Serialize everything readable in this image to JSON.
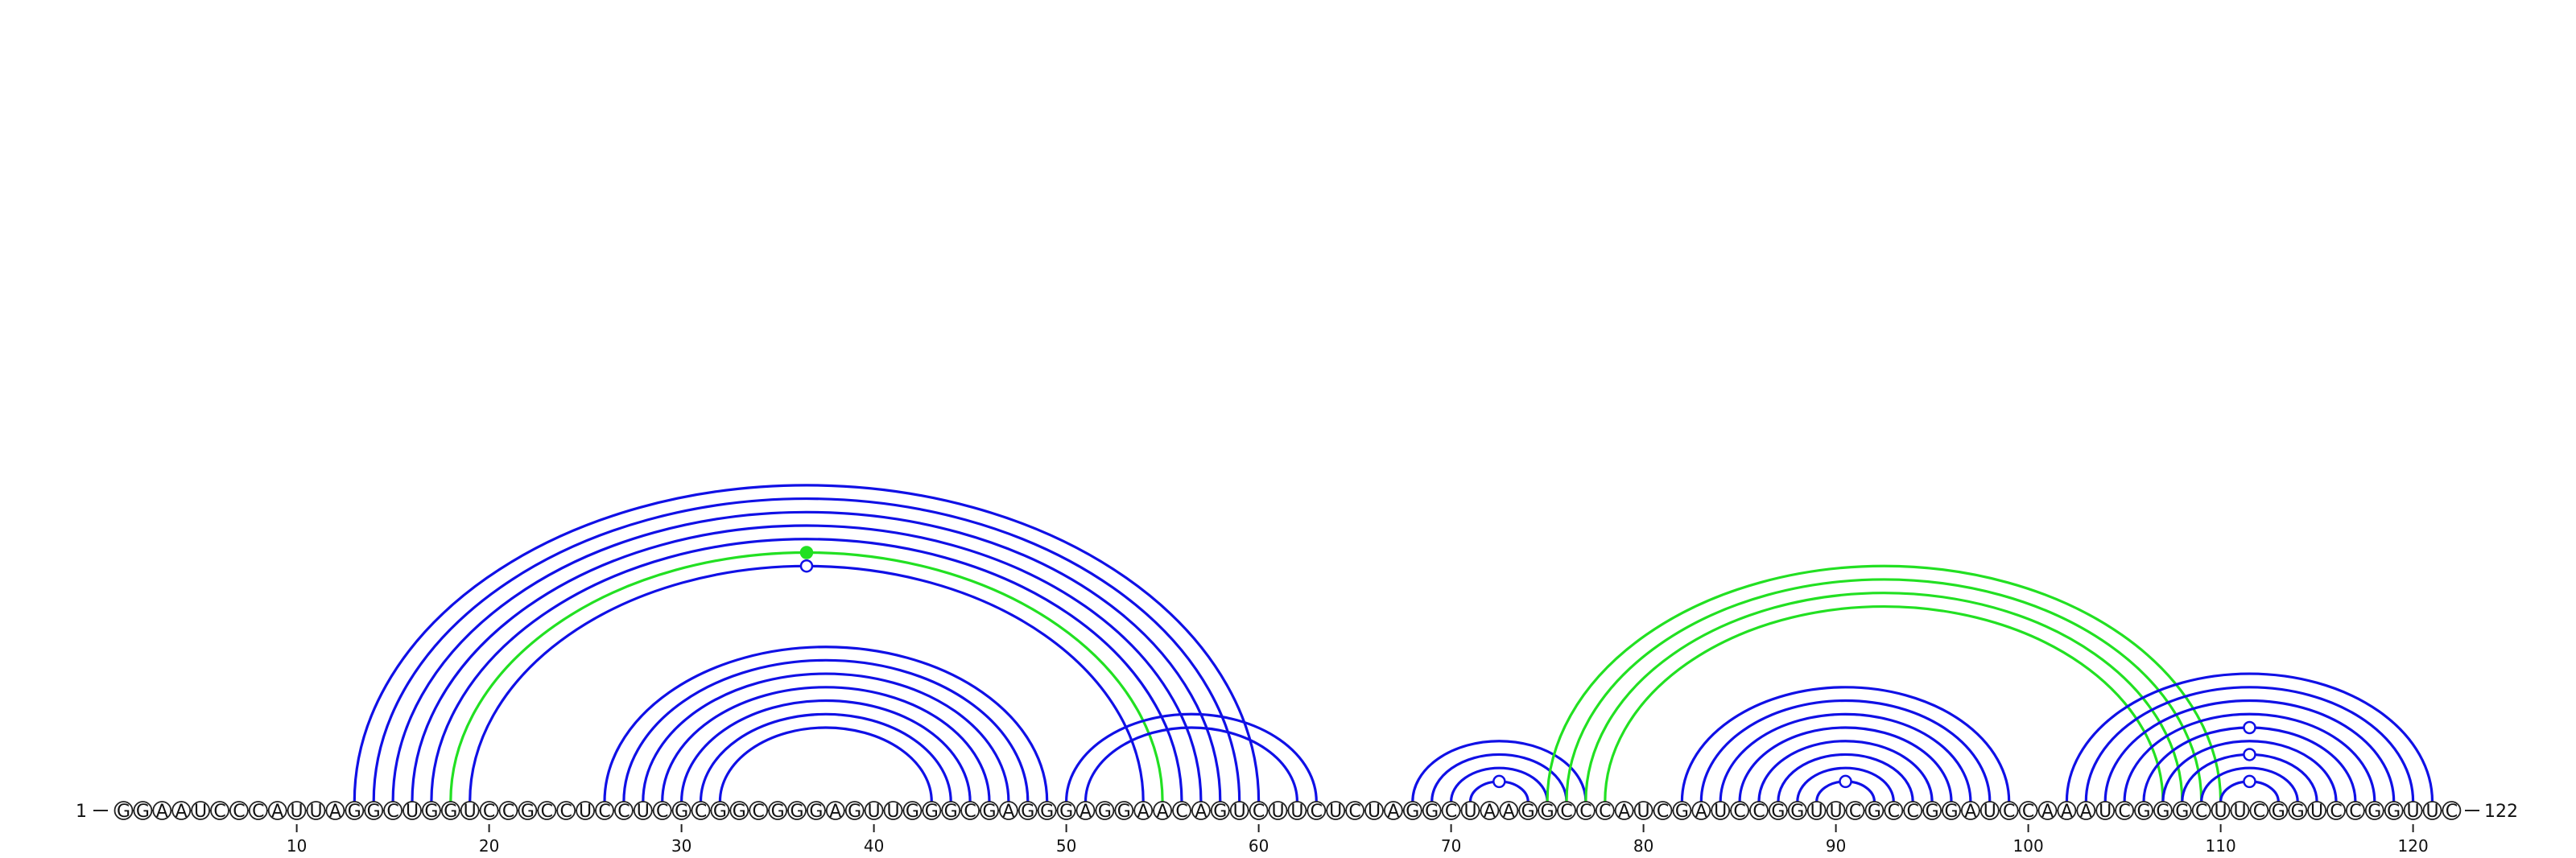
{
  "diagram": {
    "type": "rna-arc-diagram",
    "sequence": "GGAAUCCCAUUAGGCUGGUCCGCCUCCUCGCGGCGGGAGUUGGGCGAGGGAGGAACAGUCUUCUCUAGGCUAAGGCCCAUCGAUCCGGUUCGCCGGAUCCAAAUCGGGCUUCGGUCCGGUUC",
    "start_label": "1",
    "end_label": "122",
    "tick_labels": [
      "10",
      "20",
      "30",
      "40",
      "50",
      "60",
      "70",
      "80",
      "90",
      "100",
      "110",
      "120"
    ],
    "colors": {
      "blue": "#1010e6",
      "green": "#22e022",
      "nucleotide_fill": "#ffffff",
      "nucleotide_stroke": "#222222"
    },
    "helices": [
      {
        "color": "blue",
        "pairs": [
          [
            13,
            60
          ],
          [
            14,
            59
          ],
          [
            15,
            58
          ],
          [
            16,
            57
          ],
          [
            17,
            56
          ],
          [
            19,
            54
          ]
        ],
        "loop_marker": "open"
      },
      {
        "color": "green",
        "pairs": [
          [
            18,
            55
          ]
        ],
        "loop_marker": "filled"
      },
      {
        "color": "blue",
        "pairs": [
          [
            26,
            49
          ],
          [
            27,
            48
          ],
          [
            28,
            47
          ],
          [
            29,
            46
          ],
          [
            30,
            45
          ],
          [
            31,
            44
          ],
          [
            32,
            43
          ]
        ]
      },
      {
        "color": "blue",
        "pairs": [
          [
            50,
            63
          ],
          [
            51,
            62
          ]
        ]
      },
      {
        "color": "blue",
        "pairs": [
          [
            68,
            77
          ],
          [
            69,
            76
          ],
          [
            70,
            75
          ],
          [
            71,
            74
          ]
        ],
        "loop_marker": "open"
      },
      {
        "color": "green",
        "pairs": [
          [
            75,
            110
          ],
          [
            76,
            109
          ],
          [
            77,
            108
          ],
          [
            78,
            107
          ]
        ]
      },
      {
        "color": "blue",
        "pairs": [
          [
            82,
            99
          ],
          [
            83,
            98
          ],
          [
            84,
            97
          ],
          [
            85,
            96
          ],
          [
            86,
            95
          ],
          [
            87,
            94
          ],
          [
            88,
            93
          ],
          [
            89,
            92
          ]
        ],
        "loop_marker": "open"
      },
      {
        "color": "blue",
        "pairs": [
          [
            102,
            121
          ],
          [
            103,
            120
          ],
          [
            104,
            119
          ],
          [
            105,
            118
          ],
          [
            106,
            117
          ]
        ],
        "loop_marker": "open"
      },
      {
        "color": "blue",
        "pairs": [
          [
            107,
            116
          ],
          [
            108,
            115
          ]
        ],
        "loop_marker": "open"
      },
      {
        "color": "blue",
        "pairs": [
          [
            109,
            114
          ],
          [
            110,
            113
          ]
        ],
        "loop_marker": "open"
      }
    ]
  }
}
